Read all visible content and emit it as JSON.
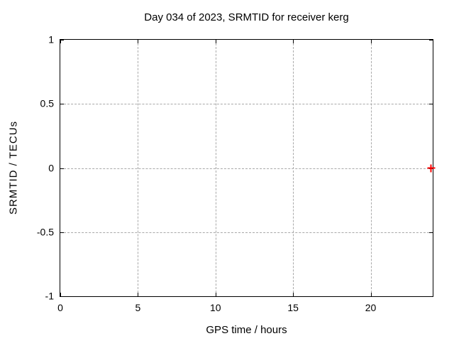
{
  "chart_data": {
    "type": "scatter",
    "title": "Day 034 of 2023, SRMTID for receiver kerg",
    "xlabel": "GPS time / hours",
    "ylabel": "SRMTID / TECUs",
    "xlim": [
      0,
      24
    ],
    "ylim": [
      -1,
      1
    ],
    "xticks": [
      0,
      5,
      10,
      15,
      20
    ],
    "yticks": [
      -1,
      -0.5,
      0,
      0.5,
      1
    ],
    "grid": true,
    "legend": "none",
    "series": [
      {
        "name": "SRMTID",
        "marker": "plus",
        "color": "#ff0000",
        "points": [
          {
            "x": 23.9,
            "y": 0.0
          }
        ]
      }
    ]
  },
  "colors": {
    "background": "#ffffff",
    "frame": "#000000",
    "grid": "#a9a9a9",
    "text": "#000000",
    "marker": "#ff0000"
  }
}
